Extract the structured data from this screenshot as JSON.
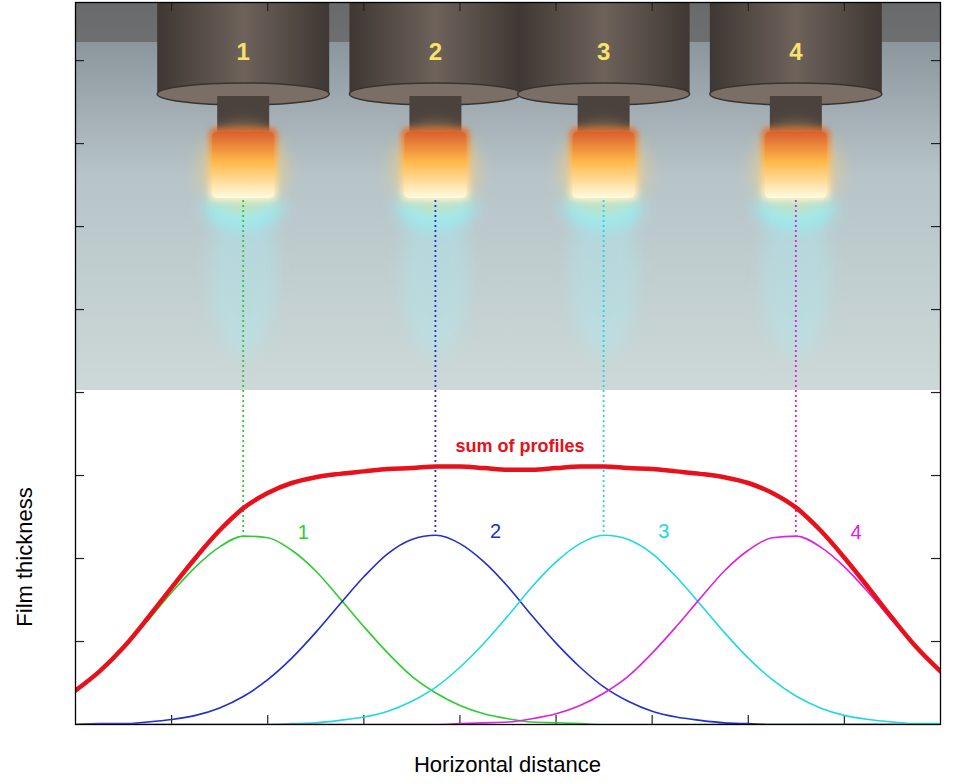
{
  "chart_data": {
    "type": "line",
    "x_label": "Horizontal distance",
    "y_label": "Film thickness",
    "x": [
      0,
      0.25,
      0.5,
      0.75,
      1,
      1.25,
      1.5,
      1.75,
      2,
      2.25,
      2.5,
      2.75,
      3,
      3.25,
      3.5,
      3.75,
      4,
      4.25,
      4.5,
      4.75,
      5,
      5.25,
      5.5,
      5.75,
      6,
      6.25,
      6.5,
      6.75,
      7,
      7.25,
      7.5,
      7.75,
      8,
      8.25,
      8.5,
      8.75,
      9
    ],
    "series": [
      {
        "name": "1",
        "color": "#2ecc2e",
        "values": [
          0.41,
          0.63,
          0.92,
          1.25,
          1.59,
          1.9,
          2.14,
          2.27,
          2.25,
          2.1,
          1.85,
          1.52,
          1.18,
          0.86,
          0.58,
          0.38,
          0.23,
          0.13,
          0.07,
          0.03,
          0.02,
          0.01,
          0,
          0,
          0,
          0,
          0,
          0,
          0,
          0,
          0,
          0,
          0,
          0,
          0,
          0,
          0
        ]
      },
      {
        "name": "2",
        "color": "#2030c8",
        "values": [
          0,
          0.01,
          0.01,
          0.03,
          0.06,
          0.11,
          0.2,
          0.34,
          0.54,
          0.8,
          1.11,
          1.45,
          1.78,
          2.06,
          2.23,
          2.28,
          2.18,
          1.96,
          1.66,
          1.31,
          0.98,
          0.69,
          0.45,
          0.28,
          0.16,
          0.09,
          0.05,
          0.02,
          0.01,
          0,
          0,
          0,
          0,
          0,
          0,
          0,
          0
        ]
      },
      {
        "name": "3",
        "color": "#1fd8e0",
        "values": [
          0,
          0,
          0,
          0,
          0,
          0,
          0,
          0,
          0,
          0.01,
          0.02,
          0.05,
          0.09,
          0.16,
          0.28,
          0.45,
          0.69,
          0.98,
          1.31,
          1.66,
          1.96,
          2.18,
          2.28,
          2.23,
          2.06,
          1.78,
          1.45,
          1.11,
          0.8,
          0.54,
          0.34,
          0.2,
          0.11,
          0.06,
          0.03,
          0.01,
          0.01
        ]
      },
      {
        "name": "4",
        "color": "#dd22dd",
        "values": [
          0,
          0,
          0,
          0,
          0,
          0,
          0,
          0,
          0,
          0,
          0,
          0,
          0,
          0,
          0,
          0,
          0.01,
          0.02,
          0.03,
          0.07,
          0.13,
          0.23,
          0.38,
          0.58,
          0.86,
          1.18,
          1.52,
          1.85,
          2.1,
          2.25,
          2.27,
          2.14,
          1.9,
          1.59,
          1.25,
          0.92,
          0.63
        ]
      },
      {
        "name": "sum of profiles",
        "color": "#e8101a",
        "values": [
          0.41,
          0.64,
          0.93,
          1.28,
          1.65,
          2.01,
          2.34,
          2.61,
          2.79,
          2.91,
          2.98,
          3.02,
          3.05,
          3.08,
          3.09,
          3.11,
          3.11,
          3.09,
          3.07,
          3.07,
          3.09,
          3.11,
          3.11,
          3.09,
          3.08,
          3.05,
          3.02,
          2.98,
          2.91,
          2.79,
          2.61,
          2.34,
          2.01,
          1.65,
          1.28,
          0.93,
          0.64
        ]
      }
    ],
    "xlim": [
      0,
      9
    ],
    "ylim": [
      0,
      8.7
    ],
    "xticks": [
      1,
      2,
      3,
      4,
      5,
      6,
      7,
      8
    ],
    "yticks": [
      1,
      2,
      3,
      4,
      5,
      6,
      7,
      8
    ],
    "tick_labels": false
  }
}
